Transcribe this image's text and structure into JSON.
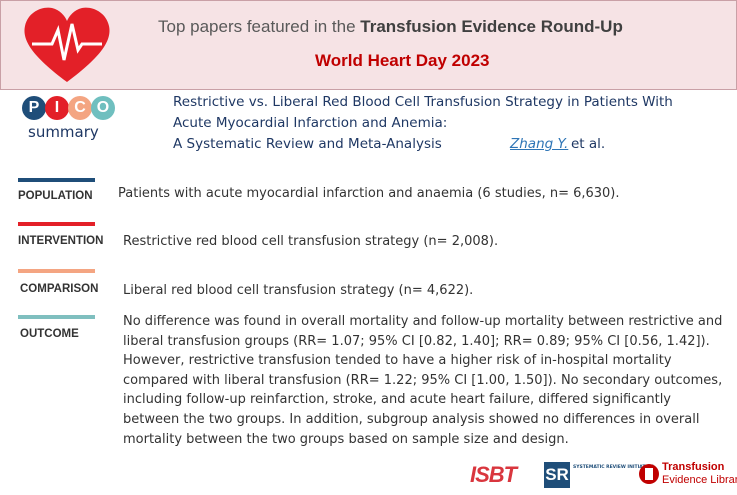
{
  "header": {
    "title_prefix": "Top papers featured in the",
    "title_emphasis": "Transfusion Evidence Round-Up",
    "subtitle": "World Heart Day 2023"
  },
  "pico_badge": {
    "letters": [
      "P",
      "I",
      "C",
      "O"
    ],
    "label": "summary"
  },
  "paper": {
    "title_lines": [
      "Restrictive vs. Liberal Red Blood Cell Transfusion Strategy in Patients With",
      "Acute Myocardial Infarction and Anemia:",
      "A Systematic Review and Meta-Analysis"
    ],
    "author": "Zhang Y.",
    "author_suffix": "et al."
  },
  "sections": [
    {
      "label": "POPULATION",
      "text": "Patients with acute myocardial infarction and anaemia (6 studies, n= 6,630)."
    },
    {
      "label": "INTERVENTION",
      "text": "Restrictive red blood cell transfusion strategy (n= 2,008)."
    },
    {
      "label": "COMPARISON",
      "text": "Liberal red blood cell transfusion strategy (n= 4,622)."
    },
    {
      "label": "OUTCOME",
      "text": "No difference was found in overall mortality and follow-up mortality between restrictive and liberal transfusion groups (RR= 1.07; 95% CI [0.82, 1.40]; RR= 0.89; 95% CI [0.56, 1.42]). However, restrictive transfusion tended to have a higher risk of in-hospital mortality compared with liberal transfusion (RR= 1.22; 95% CI [1.00, 1.50]). No secondary outcomes, including follow-up reinfarction, stroke, and acute heart failure, differed significantly between the two groups. In addition, subgroup analysis showed no differences in overall mortality between the two groups based on sample size and design."
    }
  ],
  "logos": {
    "isbt": "ISBT",
    "sri": "SR",
    "sri_text": "SYSTEMATIC REVIEW INITIATIVE",
    "tel_line1": "Transfusion",
    "tel_line2": "Evidence Library"
  }
}
